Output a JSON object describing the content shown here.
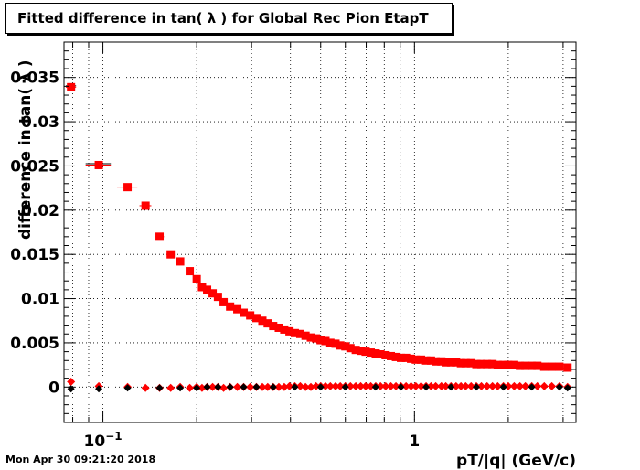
{
  "title": "Fitted difference in tan( λ ) for Global Rec Pion EtapT",
  "datestamp": "Mon Apr 30 09:21:20 2018",
  "chart_data": {
    "type": "scatter",
    "xlabel": "pT/|q| (GeV/c)",
    "ylabel": "difference in tan( λ )",
    "xscale": "log",
    "xlim": [
      0.075,
      3.3
    ],
    "ylim": [
      -0.004,
      0.039
    ],
    "grid": true,
    "colors": {
      "red": "#ff0000",
      "black": "#000000"
    },
    "x_tick_labels": [
      {
        "value": 0.1,
        "label": "10",
        "sup": "−1"
      },
      {
        "value": 1,
        "label": "1"
      }
    ],
    "y_tick_labels": [
      {
        "value": 0,
        "label": "0"
      },
      {
        "value": 0.005,
        "label": "0.005"
      },
      {
        "value": 0.01,
        "label": "0.01"
      },
      {
        "value": 0.015,
        "label": "0.015"
      },
      {
        "value": 0.02,
        "label": "0.02"
      },
      {
        "value": 0.025,
        "label": "0.025"
      },
      {
        "value": 0.03,
        "label": "0.03"
      },
      {
        "value": 0.035,
        "label": "0.035"
      }
    ],
    "series": [
      {
        "marker": "square",
        "color": "#ff0000",
        "x": [
          0.079,
          0.097,
          0.12,
          0.137,
          0.152,
          0.165,
          0.177,
          0.19,
          0.2,
          0.208,
          0.216,
          0.225,
          0.234,
          0.244,
          0.256,
          0.27,
          0.283,
          0.297,
          0.311,
          0.325,
          0.338,
          0.352,
          0.367,
          0.382,
          0.397,
          0.413,
          0.43,
          0.447,
          0.465,
          0.483,
          0.5,
          0.518,
          0.537,
          0.558,
          0.578,
          0.6,
          0.623,
          0.648,
          0.672,
          0.697,
          0.724,
          0.751,
          0.778,
          0.808,
          0.84,
          0.872,
          0.905,
          0.94,
          0.975,
          1.01,
          1.05,
          1.09,
          1.13,
          1.17,
          1.22,
          1.26,
          1.31,
          1.36,
          1.41,
          1.46,
          1.52,
          1.58,
          1.64,
          1.71,
          1.78,
          1.85,
          1.93,
          2.0,
          2.09,
          2.18,
          2.27,
          2.38,
          2.48,
          2.61,
          2.76,
          2.92,
          3.1
        ],
        "y": [
          0.0339,
          0.0251,
          0.0226,
          0.0205,
          0.017,
          0.015,
          0.0142,
          0.0131,
          0.0122,
          0.0113,
          0.011,
          0.0106,
          0.0102,
          0.0096,
          0.0091,
          0.0088,
          0.0084,
          0.0081,
          0.0078,
          0.0075,
          0.0072,
          0.0069,
          0.0067,
          0.0065,
          0.0063,
          0.0061,
          0.006,
          0.0058,
          0.0056,
          0.0055,
          0.0053,
          0.0052,
          0.005,
          0.0049,
          0.0047,
          0.0046,
          0.0044,
          0.0042,
          0.0041,
          0.004,
          0.0039,
          0.0038,
          0.0037,
          0.0036,
          0.0035,
          0.0034,
          0.0033,
          0.0033,
          0.0032,
          0.0031,
          0.0031,
          0.003,
          0.003,
          0.0029,
          0.0029,
          0.0028,
          0.0028,
          0.0028,
          0.0027,
          0.0027,
          0.0027,
          0.0026,
          0.0026,
          0.0026,
          0.0026,
          0.0025,
          0.0025,
          0.0025,
          0.0025,
          0.0024,
          0.0024,
          0.0024,
          0.0024,
          0.0023,
          0.0023,
          0.0023,
          0.0022
        ],
        "xerr": [
          0.003,
          0.009,
          0.009,
          0.006,
          0.005,
          0.005,
          0.005,
          0.004,
          0.004,
          0.004,
          0.004,
          0.004,
          0.004,
          0.005,
          0.005,
          0.006,
          0.006,
          0.006,
          0.006,
          0.006,
          0.006,
          0.007,
          0.007,
          0.007,
          0.007,
          0.008,
          0.008,
          0.008,
          0.009,
          0.009,
          0.008,
          0.009,
          0.009,
          0.01,
          0.01,
          0.011,
          0.011,
          0.012,
          0.012,
          0.012,
          0.013,
          0.013,
          0.014,
          0.014,
          0.015,
          0.015,
          0.016,
          0.017,
          0.017,
          0.018,
          0.02,
          0.02,
          0.02,
          0.02,
          0.02,
          0.02,
          0.02,
          0.02,
          0.03,
          0.03,
          0.03,
          0.03,
          0.03,
          0.03,
          0.03,
          0.04,
          0.04,
          0.04,
          0.04,
          0.04,
          0.05,
          0.05,
          0.05,
          0.06,
          0.07,
          0.08,
          0.09
        ]
      },
      {
        "marker": "diamond",
        "color": "#ff0000",
        "x": [
          0.079,
          0.097,
          0.12,
          0.137,
          0.152,
          0.165,
          0.177,
          0.19,
          0.2,
          0.208,
          0.216,
          0.225,
          0.234,
          0.244,
          0.256,
          0.27,
          0.283,
          0.297,
          0.311,
          0.325,
          0.338,
          0.352,
          0.367,
          0.382,
          0.397,
          0.413,
          0.43,
          0.447,
          0.465,
          0.483,
          0.5,
          0.518,
          0.537,
          0.558,
          0.578,
          0.6,
          0.623,
          0.648,
          0.672,
          0.697,
          0.724,
          0.751,
          0.778,
          0.808,
          0.84,
          0.872,
          0.905,
          0.94,
          0.975,
          1.01,
          1.05,
          1.09,
          1.13,
          1.17,
          1.22,
          1.26,
          1.31,
          1.36,
          1.41,
          1.46,
          1.52,
          1.58,
          1.64,
          1.71,
          1.78,
          1.85,
          1.93,
          2.0,
          2.09,
          2.18,
          2.27,
          2.38,
          2.48,
          2.61,
          2.76,
          2.92,
          3.1
        ],
        "y": [
          0.0006,
          0.0001,
          0.0,
          -0.0001,
          -0.0001,
          -0.0001,
          0.0,
          -0.0001,
          0.0,
          -0.0001,
          0.0,
          0.0,
          0.0,
          -0.0001,
          0.0,
          0.0,
          0.0,
          0.0,
          0.0,
          0.0,
          0.0,
          0.0,
          0.0,
          0.0,
          0.0001,
          0.0001,
          0.0001,
          0.0,
          0.0,
          0.0001,
          0.0001,
          0.0001,
          0.0001,
          0.0001,
          0.0001,
          0.0001,
          0.0001,
          0.0001,
          0.0001,
          0.0001,
          0.0001,
          0.0001,
          0.0001,
          0.0001,
          0.0001,
          0.0001,
          0.0001,
          0.0001,
          0.0001,
          0.0001,
          0.0001,
          0.0001,
          0.0001,
          0.0001,
          0.0001,
          0.0001,
          0.0001,
          0.0001,
          0.0001,
          0.0001,
          0.0001,
          0.0001,
          0.0001,
          0.0001,
          0.0001,
          0.0001,
          0.0001,
          0.0001,
          0.0001,
          0.0001,
          0.0001,
          0.0001,
          0.0001,
          0.0001,
          0.0001,
          0.0001,
          0.0
        ]
      },
      {
        "marker": "black-dot",
        "color": "#000000",
        "x": [
          0.079,
          0.097,
          0.12,
          0.152,
          0.177,
          0.2,
          0.216,
          0.234,
          0.256,
          0.283,
          0.311,
          0.352,
          0.413,
          0.5,
          0.6,
          0.75,
          0.905,
          1.09,
          1.31,
          1.58,
          1.93,
          2.38,
          2.92,
          3.1
        ],
        "y": [
          -0.0002,
          -0.0002,
          -0.0001,
          -0.0001,
          -0.0001,
          -0.0001,
          0.0,
          0.0,
          0.0,
          0.0,
          0.0,
          0.0,
          0.0,
          0.0,
          0.0,
          0.0,
          0.0,
          0.0,
          0.0,
          0.0,
          0.0,
          0.0,
          0.0,
          -0.0001
        ]
      }
    ]
  }
}
